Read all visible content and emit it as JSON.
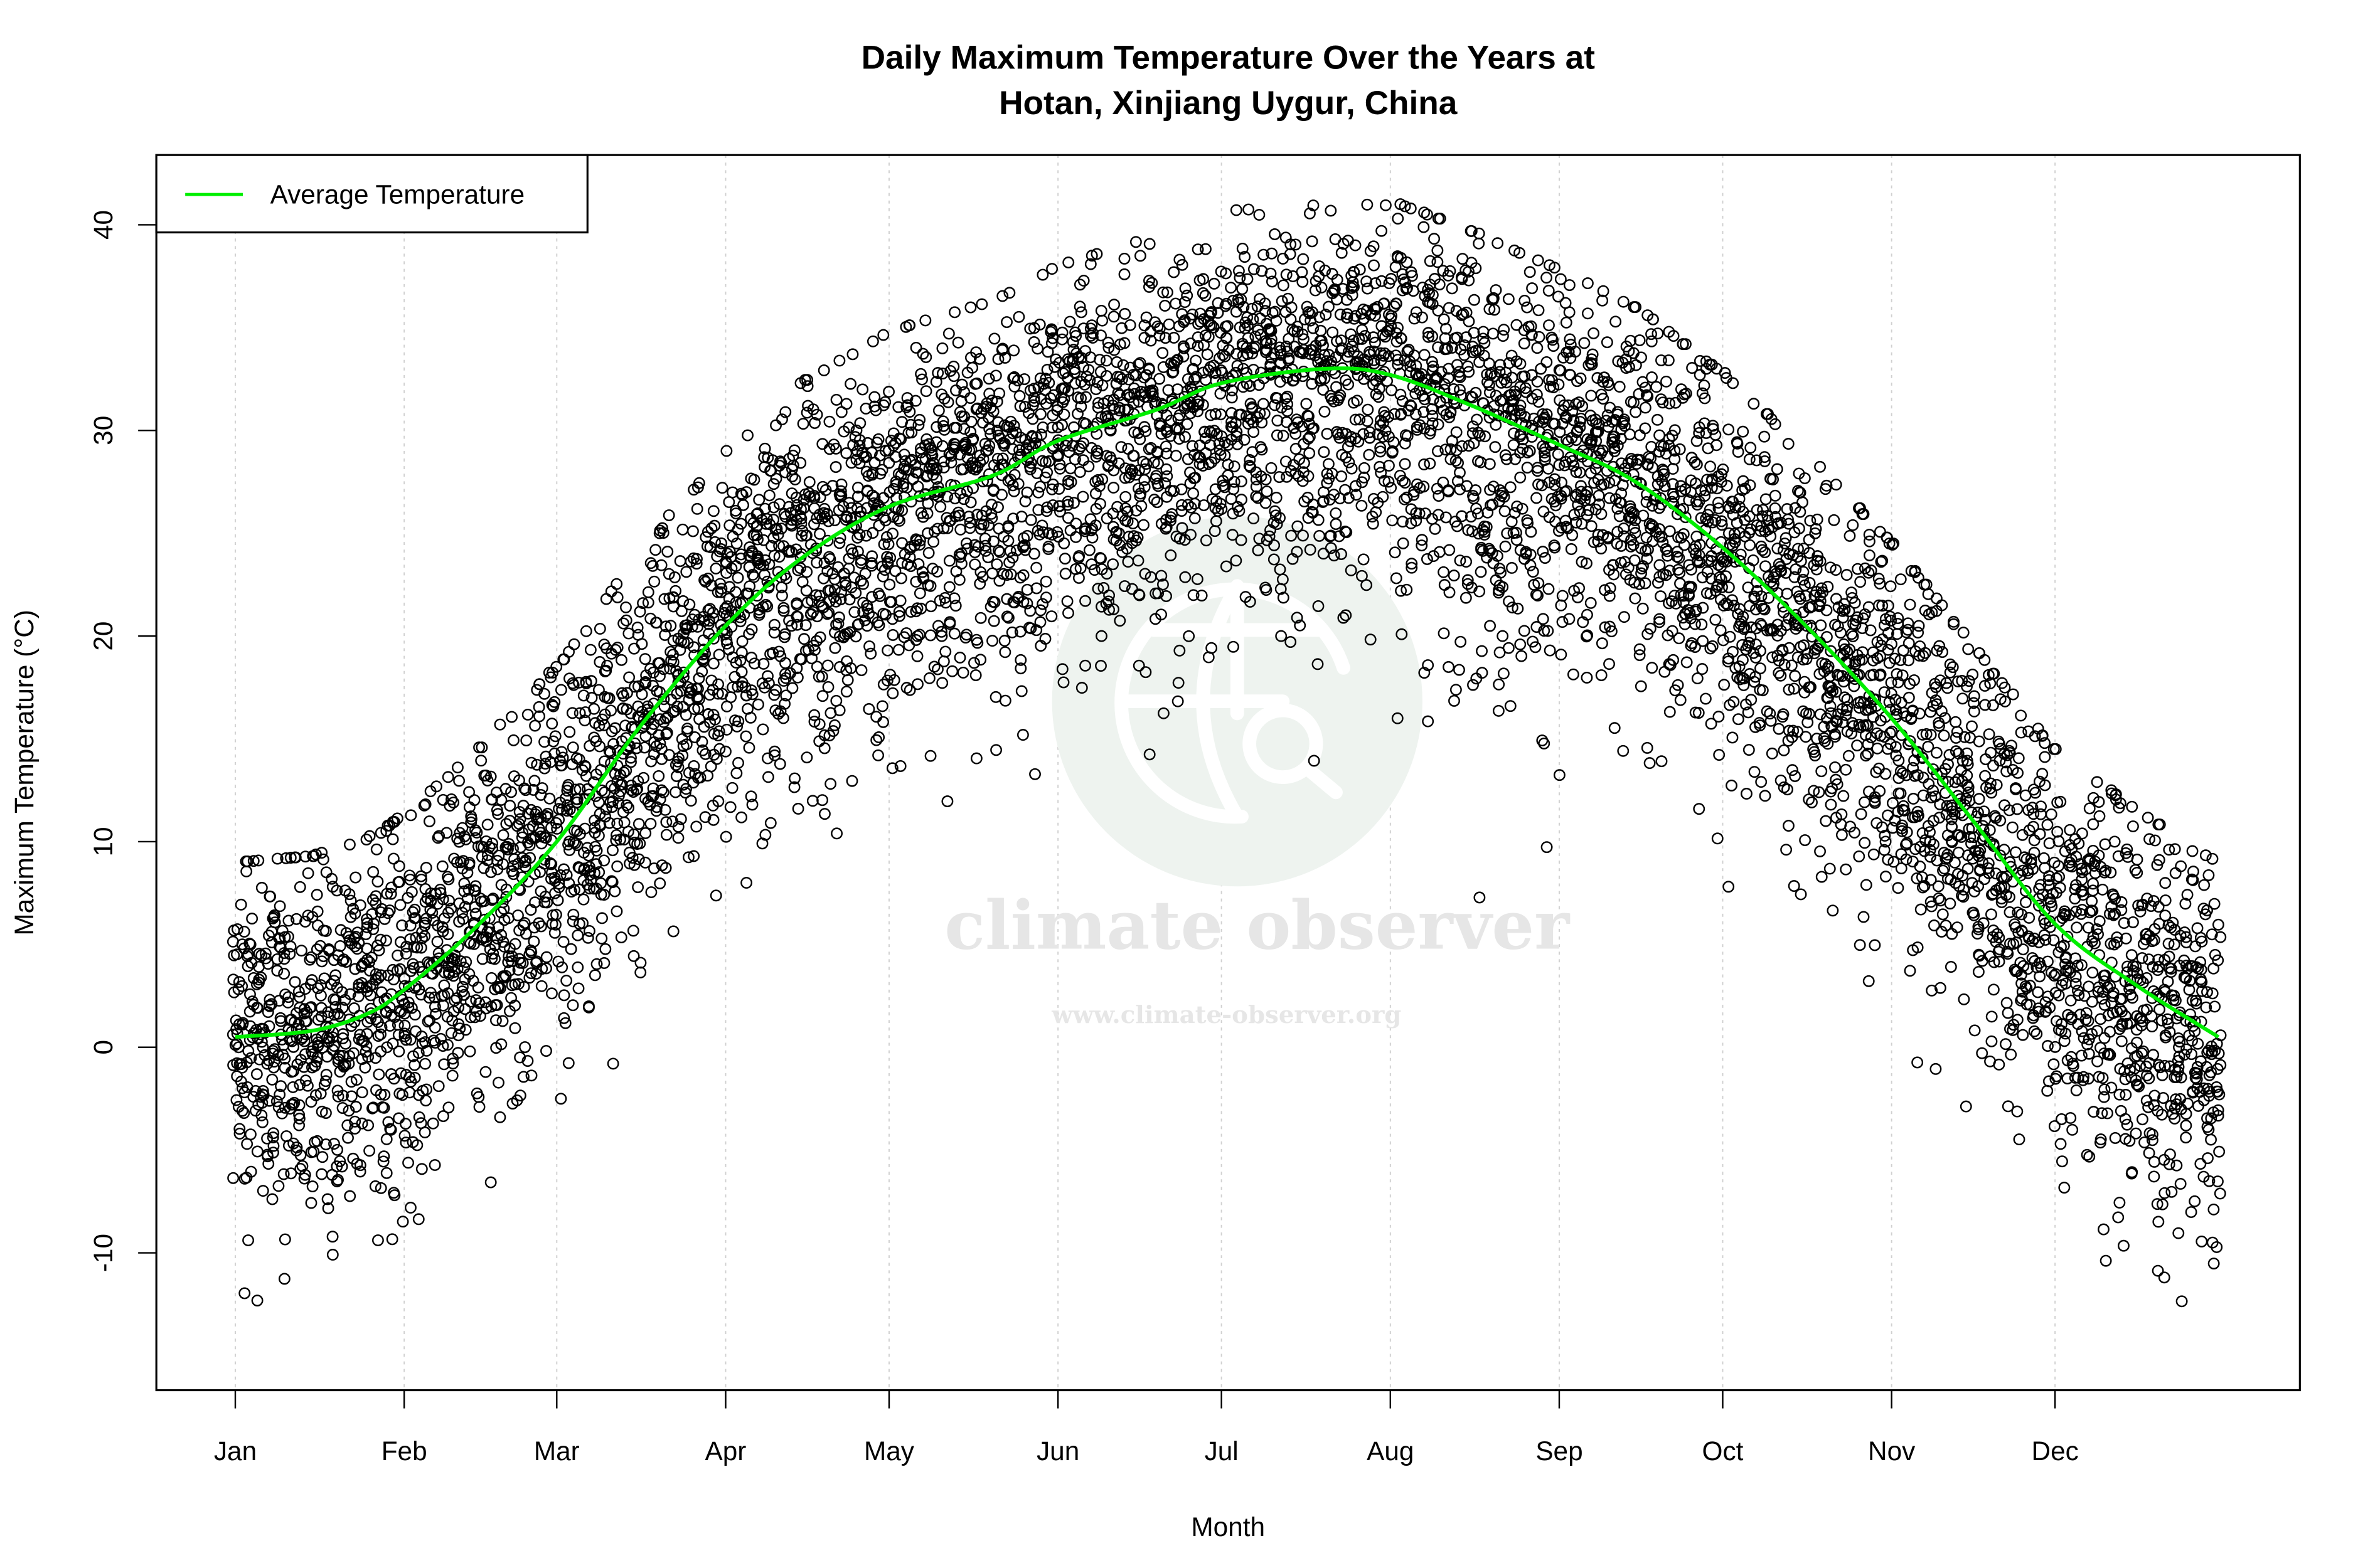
{
  "chart_data": {
    "type": "scatter",
    "title": [
      "Daily Maximum Temperature Over the Years at",
      "Hotan, Xinjiang Uygur, China"
    ],
    "xlabel": "Month",
    "ylabel": "Maximum Temperature (°C)",
    "x_tick_labels": [
      "Jan",
      "Feb",
      "Mar",
      "Apr",
      "May",
      "Jun",
      "Jul",
      "Aug",
      "Sep",
      "Oct",
      "Nov",
      "Dec"
    ],
    "x_tick_days": [
      1,
      32,
      60,
      91,
      121,
      152,
      182,
      213,
      244,
      274,
      305,
      335
    ],
    "xlim_days": [
      1,
      365
    ],
    "y_ticks": [
      -10,
      0,
      10,
      20,
      30,
      40
    ],
    "ylim": [
      -16.5,
      43.5
    ],
    "grid": "vertical dotted at month ticks",
    "legend": {
      "position": "top-left",
      "entries": [
        {
          "label": "Average Temperature",
          "color": "#00ee00",
          "style": "line"
        }
      ]
    },
    "point_style": "open-circle",
    "point_color": "#000000",
    "scatter_description_values": {
      "approx_min": -14.5,
      "approx_max": 41
    },
    "series": [
      {
        "name": "Average Temperature",
        "type": "line",
        "color": "#00ee00",
        "day": [
          1,
          15,
          25,
          32,
          45,
          60,
          75,
          91,
          105,
          121,
          140,
          152,
          170,
          182,
          201,
          213,
          228,
          244,
          258,
          274,
          290,
          305,
          320,
          335,
          350,
          365
        ],
        "value": [
          0.5,
          0.8,
          1.6,
          2.8,
          5.8,
          10,
          15.5,
          20.5,
          23.8,
          26.3,
          27.8,
          29.5,
          31,
          32.3,
          33,
          32.7,
          31.2,
          29.3,
          27.5,
          24.3,
          20.3,
          16,
          11,
          6,
          3,
          0.5
        ]
      }
    ]
  },
  "watermark": {
    "name": "climate observer",
    "url": "www.climate-observer.org",
    "color": "#eef3ef"
  }
}
